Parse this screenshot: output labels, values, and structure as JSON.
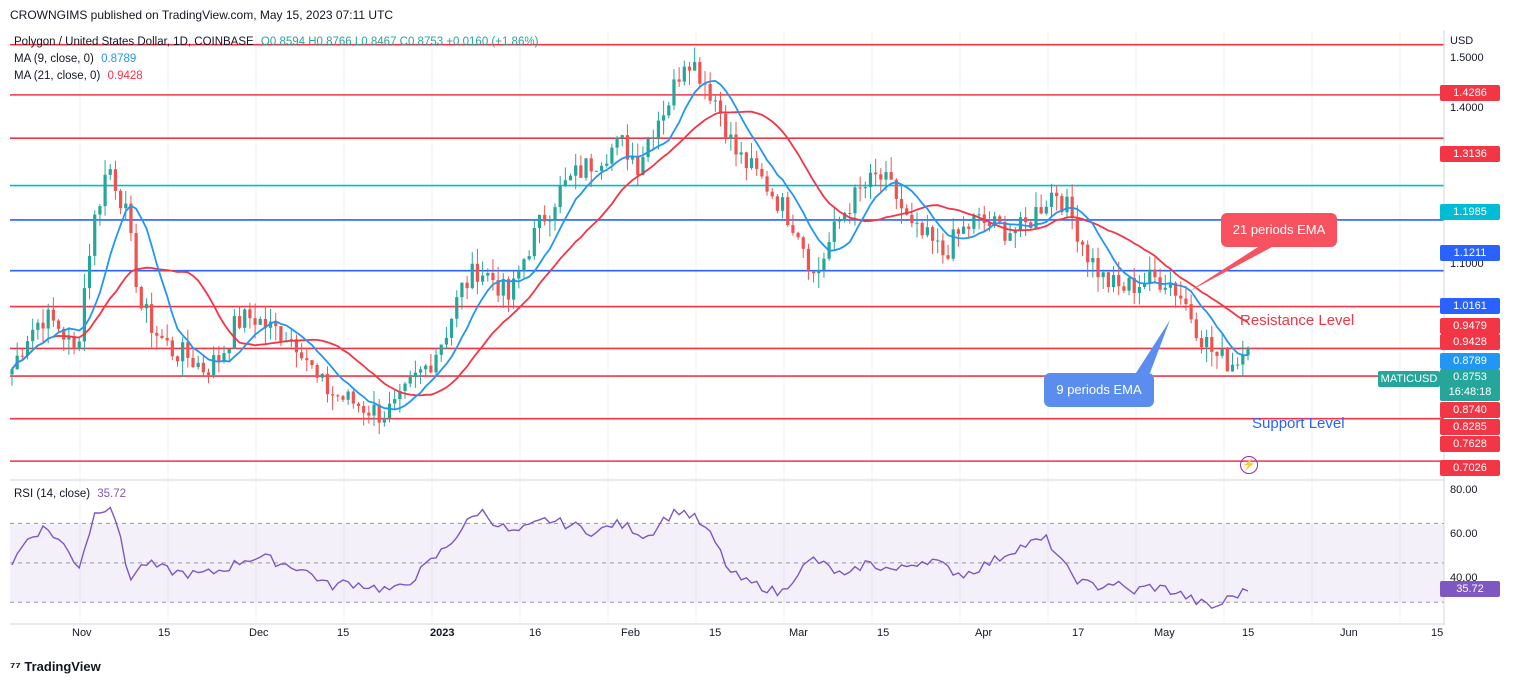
{
  "header": {
    "publisher": "CROWNGIMS published on TradingView.com, May 15, 2023 07:11 UTC"
  },
  "legend": {
    "symbol": "Polygon / United States Dollar, 1D, COINBASE",
    "ohlc": "O0.8594  H0.8766  L0.8467  C0.8753  +0.0160 (+1.86%)",
    "ma9_label": "MA (9, close, 0)",
    "ma9_value": "0.8789",
    "ma21_label": "MA (21, close, 0)",
    "ma21_value": "0.9428",
    "rsi_label": "RSI (14, close)",
    "rsi_value": "35.72"
  },
  "axis": {
    "currency": "USD",
    "price_ticks": [
      "1.5000",
      "1.4000",
      "1.1000"
    ],
    "rsi_ticks": [
      "80.00",
      "60.00",
      "40.00"
    ],
    "x_ticks": [
      "Nov",
      "15",
      "Dec",
      "15",
      "2023",
      "16",
      "Feb",
      "15",
      "Mar",
      "15",
      "Apr",
      "17",
      "May",
      "15",
      "Jun",
      "15"
    ]
  },
  "price_labels": [
    {
      "text": "1.4286",
      "color": "#f23645"
    },
    {
      "text": "1.3136",
      "color": "#f23645"
    },
    {
      "text": "1.1985",
      "color": "#00bcd4"
    },
    {
      "text": "1.1211",
      "color": "#2962ff"
    },
    {
      "text": "1.0161",
      "color": "#2962ff"
    },
    {
      "text": "0.9479",
      "color": "#f23645"
    },
    {
      "text": "0.9428",
      "color": "#f23645"
    },
    {
      "text": "0.8789",
      "color": "#2196f3"
    },
    {
      "text": "0.8740",
      "color": "#f23645"
    },
    {
      "text": "0.8285",
      "color": "#f23645"
    },
    {
      "text": "0.7628",
      "color": "#f23645"
    },
    {
      "text": "0.7026",
      "color": "#f23645"
    },
    {
      "text": "35.72",
      "color": "#7e57c2"
    }
  ],
  "current": {
    "symbol": "MATICUSD",
    "price": "0.8753",
    "countdown": "16:48:18",
    "color": "#26a69a"
  },
  "annotations": {
    "ema21": "21 periods EMA",
    "ema9": "9 periods EMA",
    "resistance": "Resistance Level",
    "support": "Support Level"
  },
  "colors": {
    "bull": "#26a69a",
    "bear": "#ef5350",
    "ma9": "#2196f3",
    "ma21": "#f23645",
    "rsi": "#7e57c2",
    "red_level": "#f23645",
    "blue_level": "#2962ff",
    "cyan_level": "#00bcd4"
  },
  "footer": {
    "brand": "TradingView"
  },
  "chart_data": {
    "type": "candlestick",
    "y_scale": "log",
    "ylim": [
      0.68,
      1.62
    ],
    "rsi_ylim": [
      20,
      90
    ],
    "horizontal_levels": [
      {
        "value": 1.5744,
        "color": "#f23645"
      },
      {
        "value": 1.4286,
        "color": "#f23645"
      },
      {
        "value": 1.3136,
        "color": "#f23645"
      },
      {
        "value": 1.1985,
        "color": "#00bcd4"
      },
      {
        "value": 1.1211,
        "color": "#2962ff"
      },
      {
        "value": 1.0161,
        "color": "#2962ff"
      },
      {
        "value": 0.9479,
        "color": "#f23645"
      },
      {
        "value": 0.874,
        "color": "#f23645"
      },
      {
        "value": 0.8285,
        "color": "#f23645"
      },
      {
        "value": 0.7628,
        "color": "#f23645"
      },
      {
        "value": 0.7026,
        "color": "#f23645"
      }
    ],
    "rsi_levels": [
      70,
      50,
      30
    ],
    "close_waypoints": [
      0.84,
      0.9,
      0.93,
      0.91,
      0.86,
      1.1,
      1.25,
      1.15,
      0.95,
      0.9,
      0.87,
      0.86,
      0.84,
      0.86,
      0.92,
      0.93,
      0.91,
      0.9,
      0.88,
      0.82,
      0.8,
      0.79,
      0.78,
      0.77,
      0.78,
      0.82,
      0.85,
      0.9,
      0.98,
      1.02,
      1.0,
      0.96,
      1.05,
      1.12,
      1.18,
      1.22,
      1.25,
      1.28,
      1.3,
      1.25,
      1.35,
      1.42,
      1.55,
      1.48,
      1.4,
      1.28,
      1.24,
      1.2,
      1.15,
      1.1,
      1.0,
      1.08,
      1.15,
      1.19,
      1.22,
      1.18,
      1.1,
      1.08,
      1.05,
      1.09,
      1.12,
      1.11,
      1.1,
      1.1,
      1.15,
      1.19,
      1.13,
      1.05,
      1.0,
      0.98,
      0.99,
      1.0,
      1.0,
      0.96,
      0.9,
      0.86,
      0.85,
      0.8753
    ],
    "rsi_waypoints": [
      50,
      63,
      68,
      60,
      48,
      76,
      80,
      42,
      50,
      47,
      45,
      44,
      45,
      48,
      52,
      53,
      50,
      48,
      44,
      38,
      40,
      39,
      37,
      36,
      42,
      50,
      58,
      68,
      77,
      70,
      65,
      68,
      72,
      70,
      68,
      65,
      70,
      68,
      63,
      72,
      77,
      72,
      62,
      45,
      40,
      38,
      34,
      45,
      52,
      47,
      42,
      50,
      48,
      46,
      50,
      52,
      47,
      44,
      48,
      52,
      57,
      60,
      62,
      48,
      40,
      38,
      40,
      35,
      38,
      37,
      34,
      30,
      27,
      33,
      35.72
    ]
  }
}
